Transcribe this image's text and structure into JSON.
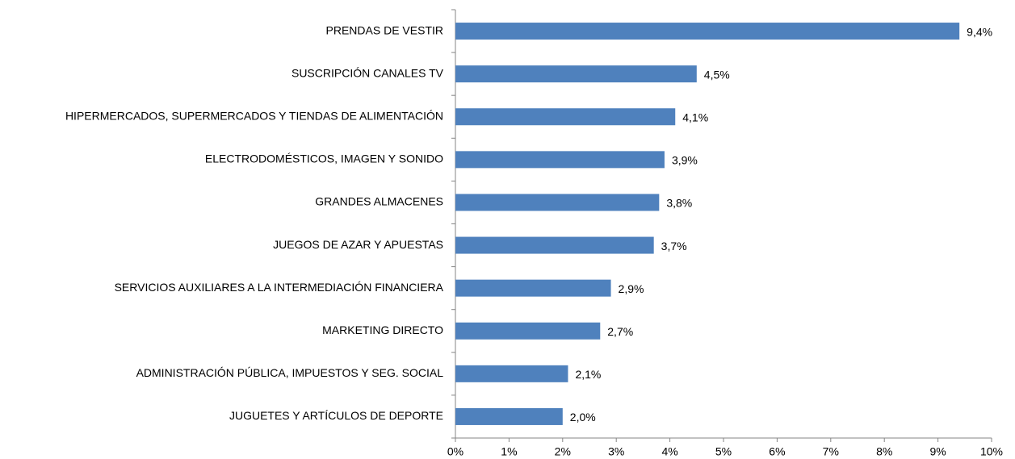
{
  "chart_data": {
    "type": "barh",
    "categories": [
      "PRENDAS DE VESTIR",
      "SUSCRIPCIÓN CANALES TV",
      "HIPERMERCADOS, SUPERMERCADOS Y TIENDAS DE ALIMENTACIÓN",
      "ELECTRODOMÉSTICOS,  IMAGEN Y SONIDO",
      "GRANDES ALMACENES",
      "JUEGOS DE AZAR Y APUESTAS",
      "SERVICIOS AUXILIARES A LA INTERMEDIACIÓN FINANCIERA",
      "MARKETING DIRECTO",
      "ADMINISTRACIÓN PÚBLICA, IMPUESTOS Y SEG. SOCIAL",
      "JUGUETES Y ARTÍCULOS DE DEPORTE"
    ],
    "values": [
      9.4,
      4.5,
      4.1,
      3.9,
      3.8,
      3.7,
      2.9,
      2.7,
      2.1,
      2.0
    ],
    "value_labels": [
      "9,4%",
      "4,5%",
      "4,1%",
      "3,9%",
      "3,8%",
      "3,7%",
      "2,9%",
      "2,7%",
      "2,1%",
      "2,0%"
    ],
    "color": "#4f81bd",
    "xlim": [
      0,
      10
    ],
    "xticks": [
      {
        "value": 0,
        "label": "0%"
      },
      {
        "value": 1,
        "label": "1%"
      },
      {
        "value": 2,
        "label": "2%"
      },
      {
        "value": 3,
        "label": "3%"
      },
      {
        "value": 4,
        "label": "4%"
      },
      {
        "value": 5,
        "label": "5%"
      },
      {
        "value": 6,
        "label": "6%"
      },
      {
        "value": 7,
        "label": "7%"
      },
      {
        "value": 8,
        "label": "8%"
      },
      {
        "value": 9,
        "label": "9%"
      },
      {
        "value": 10,
        "label": "10%"
      }
    ],
    "grid": false
  }
}
